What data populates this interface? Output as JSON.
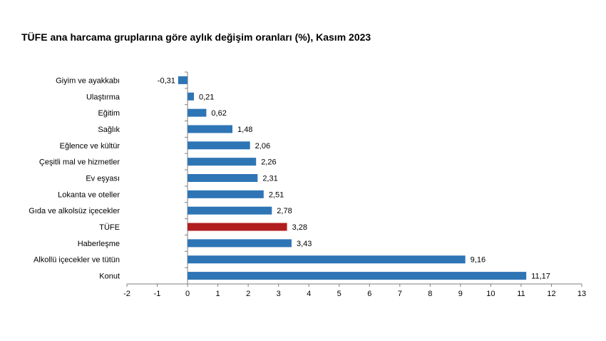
{
  "title": "TÜFE ana harcama gruplarına göre aylık değişim oranları (%), Kasım 2023",
  "chart_data": {
    "type": "bar",
    "orientation": "horizontal",
    "title": "TÜFE ana harcama gruplarına göre aylık değişim oranları (%), Kasım 2023",
    "categories": [
      "Giyim ve ayakkabı",
      "Ulaştırma",
      "Eğitim",
      "Sağlık",
      "Eğlence ve kültür",
      "Çeşitli mal ve hizmetler",
      "Ev eşyası",
      "Lokanta ve oteller",
      "Gıda ve alkolsüz içecekler",
      "TÜFE",
      "Haberleşme",
      "Alkollü içecekler ve tütün",
      "Konut"
    ],
    "values": [
      -0.31,
      0.21,
      0.62,
      1.48,
      2.06,
      2.26,
      2.31,
      2.51,
      2.78,
      3.28,
      3.43,
      9.16,
      11.17
    ],
    "value_labels": [
      "-0,31",
      "0,21",
      "0,62",
      "1,48",
      "2,06",
      "2,26",
      "2,31",
      "2,51",
      "2,78",
      "3,28",
      "3,43",
      "9,16",
      "11,17"
    ],
    "xlim": [
      -2,
      13
    ],
    "xticks": [
      -2,
      -1,
      0,
      1,
      2,
      3,
      4,
      5,
      6,
      7,
      8,
      9,
      10,
      11,
      12,
      13
    ],
    "xtick_labels": [
      "-2",
      "-1",
      "0",
      "1",
      "2",
      "3",
      "4",
      "5",
      "6",
      "7",
      "8",
      "9",
      "10",
      "11",
      "12",
      "13"
    ],
    "grid": false,
    "colors": {
      "default": "#2e75b6",
      "highlight": "#b21e1e"
    },
    "highlight_category": "TÜFE"
  }
}
